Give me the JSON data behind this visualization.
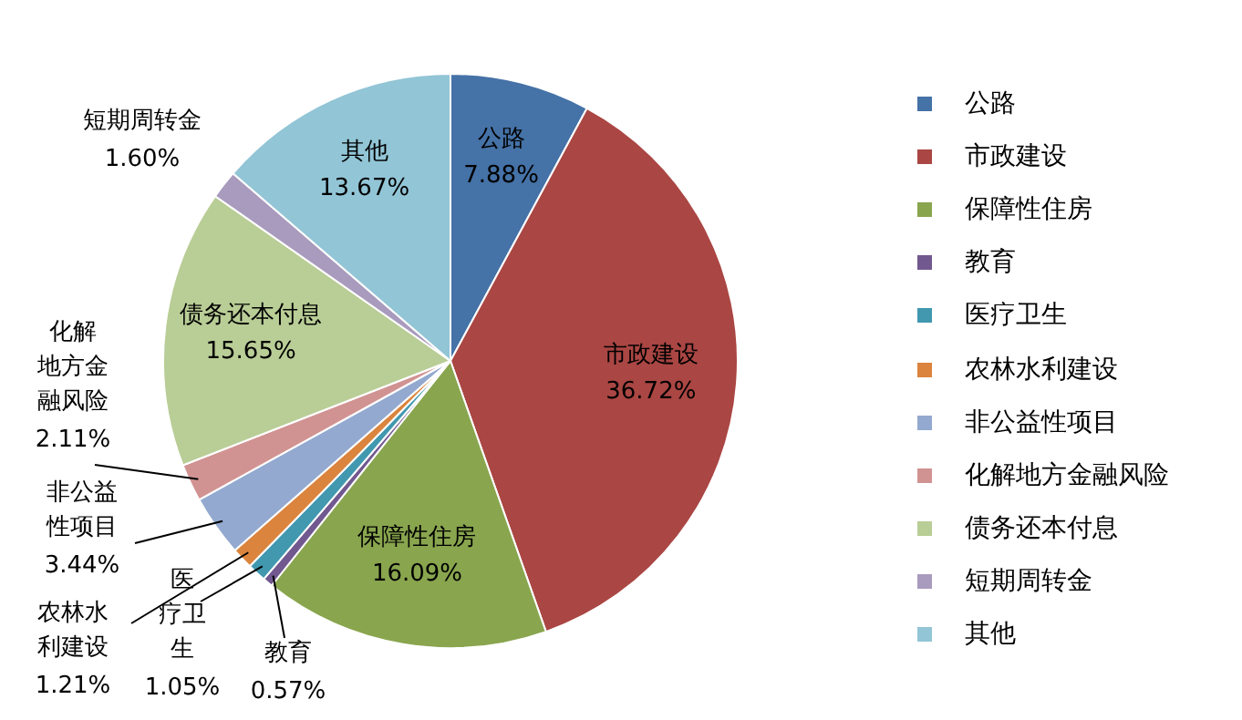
{
  "chart_data": {
    "type": "pie",
    "categories": [
      "公路",
      "市政建设",
      "保障性住房",
      "教育",
      "医疗卫生",
      "农林水利建设",
      "非公益性项目",
      "化解地方金融风险",
      "债务还本付息",
      "短期周转金",
      "其他"
    ],
    "values": [
      7.88,
      36.72,
      16.09,
      0.57,
      1.05,
      1.21,
      3.44,
      2.11,
      15.65,
      1.6,
      13.67
    ],
    "value_labels": [
      "7.88%",
      "36.72%",
      "16.09%",
      "0.57%",
      "1.05%",
      "1.21%",
      "3.44%",
      "2.11%",
      "15.65%",
      "1.60%",
      "13.67%"
    ],
    "colors": [
      "#4572a7",
      "#aa4643",
      "#89a54e",
      "#71588f",
      "#4198af",
      "#db843d",
      "#93a9cf",
      "#d19392",
      "#b9cd96",
      "#a99bbd",
      "#92c5d6"
    ],
    "legend": "right"
  }
}
